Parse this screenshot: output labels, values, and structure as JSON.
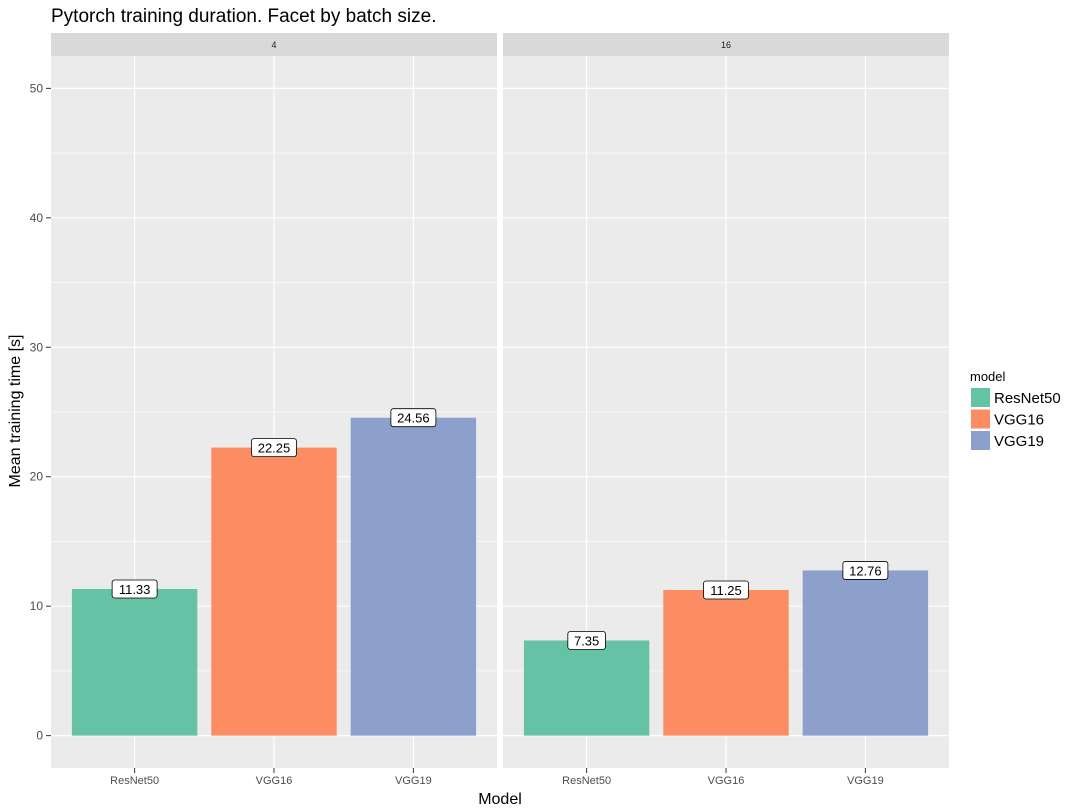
{
  "chart_data": {
    "type": "bar",
    "title": "Pytorch training duration. Facet by batch size.",
    "xlabel": "Model",
    "ylabel": "Mean training time [s]",
    "ylim": [
      -2.5,
      52.5
    ],
    "yticks": [
      0,
      10,
      20,
      30,
      40,
      50
    ],
    "grid": true,
    "categories": [
      "ResNet50",
      "VGG16",
      "VGG19"
    ],
    "facets": [
      {
        "label": "4",
        "values": [
          11.33,
          22.25,
          24.56
        ],
        "value_labels": [
          "11.33",
          "22.25",
          "24.56"
        ]
      },
      {
        "label": "16",
        "values": [
          7.35,
          11.25,
          12.76
        ],
        "value_labels": [
          "7.35",
          "11.25",
          "12.76"
        ]
      }
    ],
    "legend": {
      "title": "model",
      "position": "right",
      "items": [
        {
          "name": "ResNet50",
          "color": "#66c2a5"
        },
        {
          "name": "VGG16",
          "color": "#fc8d62"
        },
        {
          "name": "VGG19",
          "color": "#8da0cb"
        }
      ]
    },
    "colors": {
      "panel_background": "#ebebeb",
      "strip_background": "#d9d9d9",
      "grid_major": "#ffffff"
    }
  }
}
